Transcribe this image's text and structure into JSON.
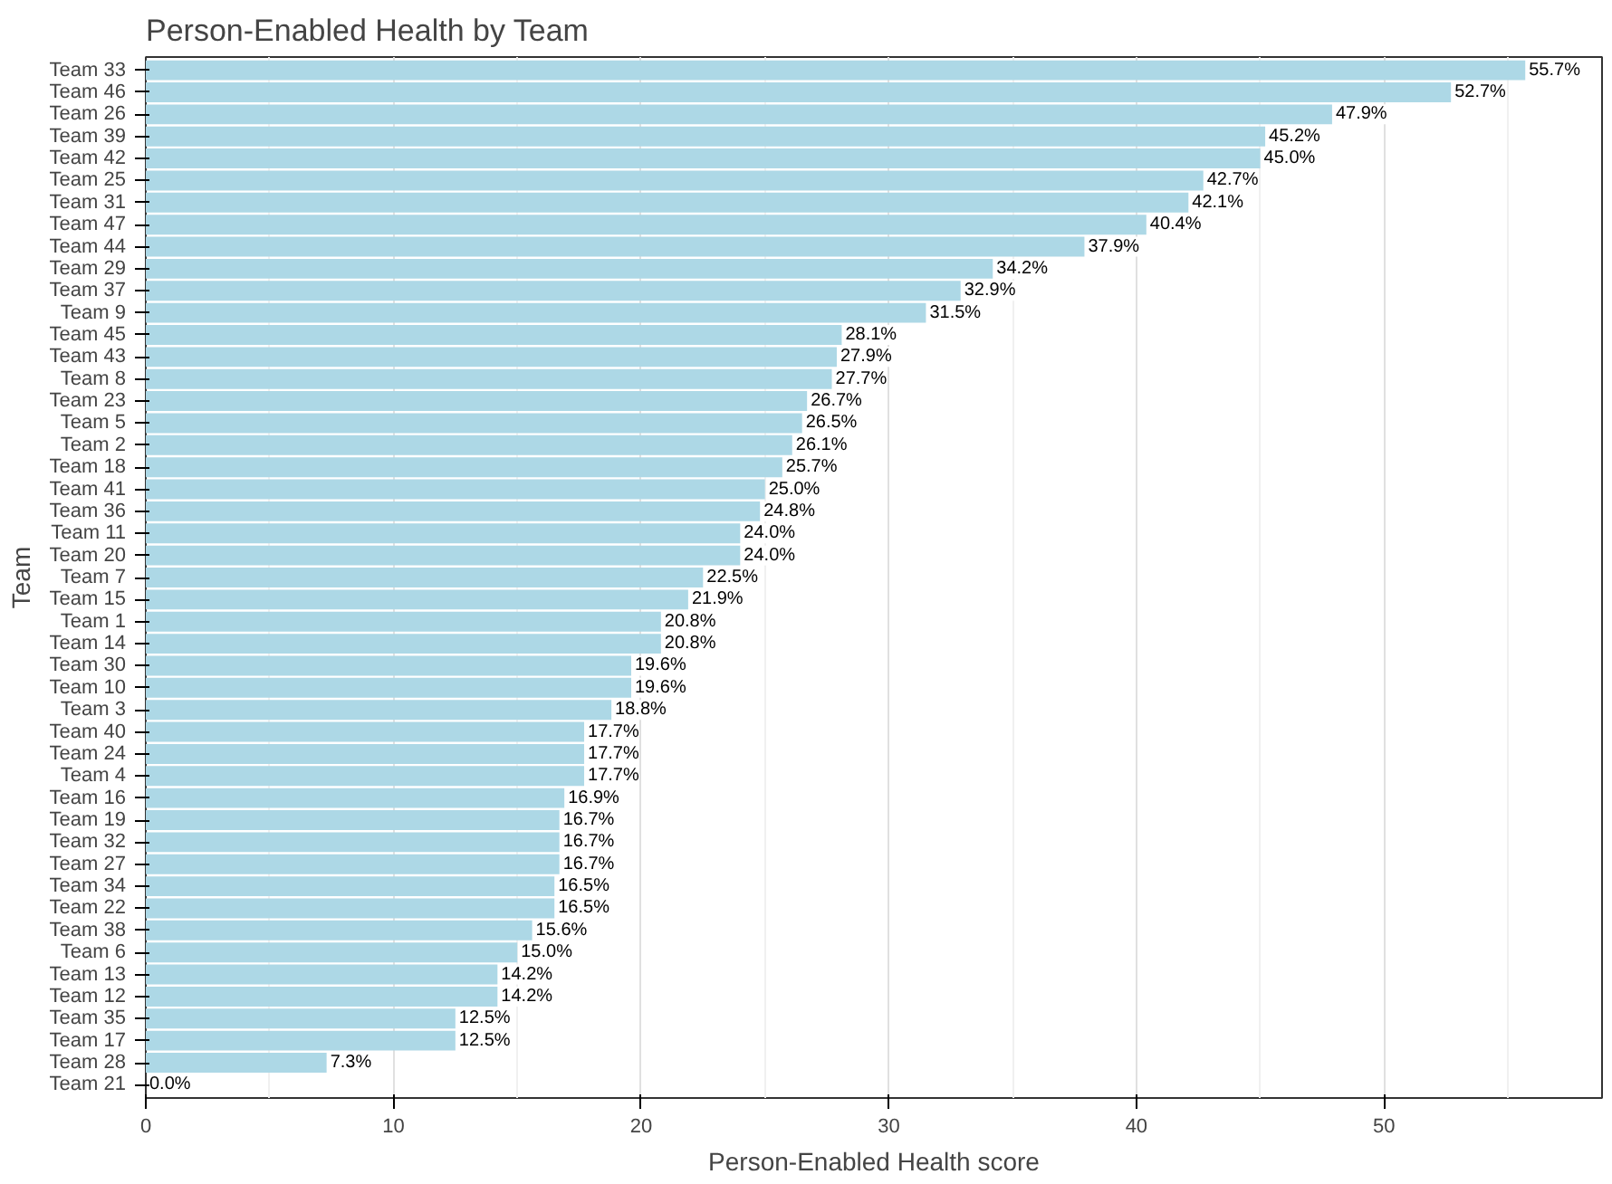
{
  "chart_data": {
    "type": "bar",
    "orientation": "horizontal",
    "title": "Person-Enabled Health by Team",
    "xlabel": "Person-Enabled Health score",
    "ylabel": "Team",
    "categories": [
      "Team 33",
      "Team 46",
      "Team 26",
      "Team 39",
      "Team 42",
      "Team 25",
      "Team 31",
      "Team 47",
      "Team 44",
      "Team 29",
      "Team 37",
      "Team 9",
      "Team 45",
      "Team 43",
      "Team 8",
      "Team 23",
      "Team 5",
      "Team 2",
      "Team 18",
      "Team 41",
      "Team 36",
      "Team 11",
      "Team 20",
      "Team 7",
      "Team 15",
      "Team 1",
      "Team 14",
      "Team 30",
      "Team 10",
      "Team 3",
      "Team 40",
      "Team 24",
      "Team 4",
      "Team 16",
      "Team 19",
      "Team 32",
      "Team 27",
      "Team 34",
      "Team 22",
      "Team 38",
      "Team 6",
      "Team 13",
      "Team 12",
      "Team 35",
      "Team 17",
      "Team 28",
      "Team 21"
    ],
    "values": [
      55.7,
      52.7,
      47.9,
      45.2,
      45.0,
      42.7,
      42.1,
      40.4,
      37.9,
      34.2,
      32.9,
      31.5,
      28.1,
      27.9,
      27.7,
      26.7,
      26.5,
      26.1,
      25.7,
      25.0,
      24.8,
      24.0,
      24.0,
      22.5,
      21.9,
      20.8,
      20.8,
      19.6,
      19.6,
      18.8,
      17.7,
      17.7,
      17.7,
      16.9,
      16.7,
      16.7,
      16.7,
      16.5,
      16.5,
      15.6,
      15.0,
      14.2,
      14.2,
      12.5,
      12.5,
      7.3,
      0.0
    ],
    "value_labels": [
      "55.7%",
      "52.7%",
      "47.9%",
      "45.2%",
      "45.0%",
      "42.7%",
      "42.1%",
      "40.4%",
      "37.9%",
      "34.2%",
      "32.9%",
      "31.5%",
      "28.1%",
      "27.9%",
      "27.7%",
      "26.7%",
      "26.5%",
      "26.1%",
      "25.7%",
      "25.0%",
      "24.8%",
      "24.0%",
      "24.0%",
      "22.5%",
      "21.9%",
      "20.8%",
      "20.8%",
      "19.6%",
      "19.6%",
      "18.8%",
      "17.7%",
      "17.7%",
      "17.7%",
      "16.9%",
      "16.7%",
      "16.7%",
      "16.7%",
      "16.5%",
      "16.5%",
      "15.6%",
      "15.0%",
      "14.2%",
      "14.2%",
      "12.5%",
      "12.5%",
      "7.3%",
      "0.0%"
    ],
    "color": "#add8e6",
    "xlim": [
      0,
      58.8
    ],
    "xticks": [
      0,
      10,
      20,
      30,
      40,
      50
    ],
    "grid": "x"
  }
}
